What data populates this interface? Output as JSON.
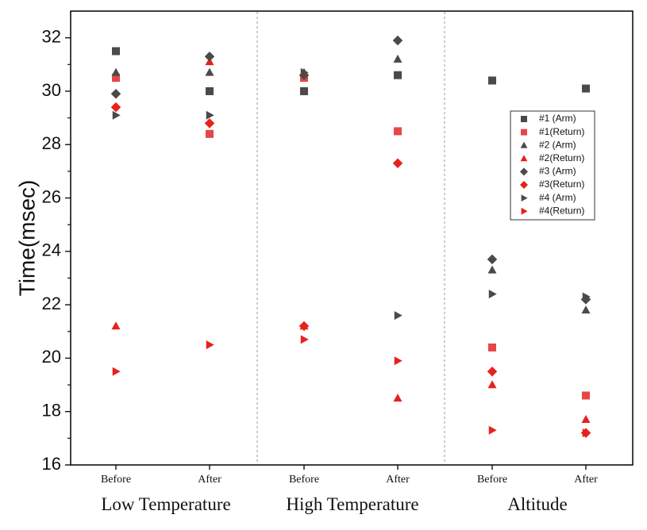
{
  "chart_data": {
    "type": "scatter",
    "title": "",
    "ylabel": "Time(msec)",
    "ylim": [
      16,
      33
    ],
    "yticks": [
      16,
      18,
      20,
      22,
      24,
      26,
      28,
      30,
      32
    ],
    "grid": false,
    "legend_position": "right",
    "colors": {
      "arm": "#4a4a4a",
      "return": "#e8211c",
      "divider": "#999999"
    },
    "categories": [
      "Before",
      "After",
      "Before",
      "After",
      "Before",
      "After"
    ],
    "groups": [
      {
        "label": "Low Temperature",
        "categories": [
          0,
          1
        ]
      },
      {
        "label": "High Temperature",
        "categories": [
          2,
          3
        ]
      },
      {
        "label": "Altitude",
        "categories": [
          4,
          5
        ]
      }
    ],
    "series": [
      {
        "name": "#1 (Arm)",
        "marker": "square",
        "color": "#4a4a4a",
        "values": [
          31.5,
          30.0,
          30.0,
          30.6,
          30.4,
          30.1
        ]
      },
      {
        "name": "#1(Return)",
        "marker": "square",
        "color": "#e84646",
        "values": [
          30.5,
          28.4,
          30.5,
          28.5,
          20.4,
          18.6
        ]
      },
      {
        "name": "#2 (Arm)",
        "marker": "triangle-up",
        "color": "#4a4a4a",
        "values": [
          30.7,
          30.7,
          30.7,
          31.2,
          23.3,
          21.8
        ]
      },
      {
        "name": "#2(Return)",
        "marker": "triangle-up",
        "color": "#e8211c",
        "values": [
          21.2,
          31.1,
          21.2,
          18.5,
          19.0,
          17.7
        ]
      },
      {
        "name": "#3 (Arm)",
        "marker": "diamond",
        "color": "#4a4a4a",
        "values": [
          29.9,
          31.3,
          30.6,
          31.9,
          23.7,
          22.2
        ]
      },
      {
        "name": "#3(Return)",
        "marker": "diamond",
        "color": "#e8211c",
        "values": [
          29.4,
          28.8,
          21.2,
          27.3,
          19.5,
          17.2
        ]
      },
      {
        "name": "#4 (Arm)",
        "marker": "triangle-right",
        "color": "#4a4a4a",
        "values": [
          29.1,
          29.1,
          30.7,
          21.6,
          22.4,
          22.3
        ]
      },
      {
        "name": "#4(Return)",
        "marker": "triangle-right",
        "color": "#e8211c",
        "values": [
          19.5,
          20.5,
          20.7,
          19.9,
          17.3,
          17.2
        ]
      }
    ]
  }
}
